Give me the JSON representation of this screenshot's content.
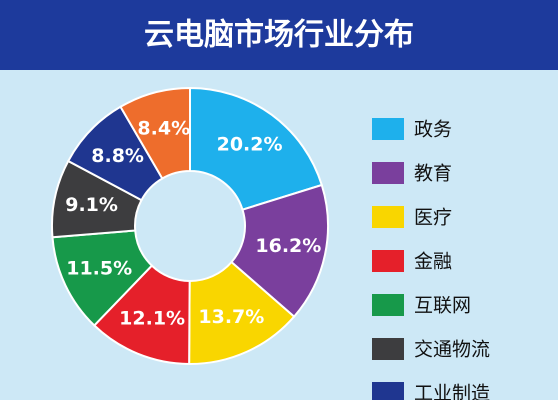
{
  "chart_data": {
    "type": "donut",
    "title": "云电脑市场行业分布",
    "categories": [
      "政务",
      "教育",
      "医疗",
      "金融",
      "互联网",
      "交通物流",
      "工业制造",
      null
    ],
    "values": [
      20.2,
      16.2,
      13.7,
      12.1,
      11.5,
      9.1,
      8.8,
      8.4
    ],
    "value_labels": [
      "20.2%",
      "16.2%",
      "13.7%",
      "12.1%",
      "11.5%",
      "9.1%",
      "8.8%",
      "8.4%"
    ],
    "colors": [
      "#1eb0ec",
      "#7a3f9d",
      "#f9d600",
      "#e5202a",
      "#17994a",
      "#3d3d3f",
      "#1f3690",
      "#ee6d2c"
    ],
    "legend": "right"
  }
}
